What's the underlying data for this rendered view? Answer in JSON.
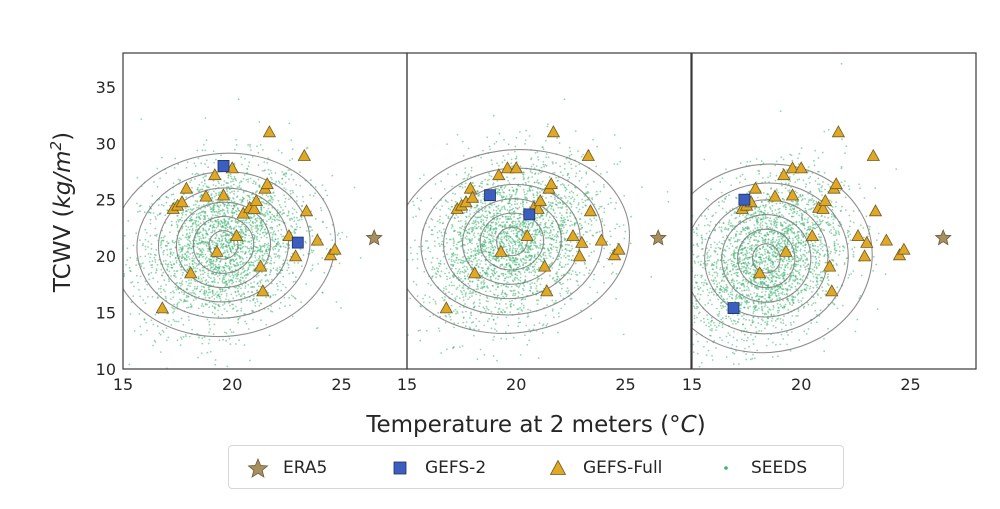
{
  "chart_data": {
    "type": "scatter",
    "ylabel_main": "TCWV (",
    "ylabel_unit": "kg/m",
    "ylabel_sup": "2",
    "ylabel_close": ")",
    "xlabel": "Temperature at 2 meters (",
    "xlabel_unit": "°C",
    "xlabel_close": ")",
    "xlim": [
      15,
      28
    ],
    "ylim": [
      10,
      38
    ],
    "xticks": [
      15,
      20,
      25
    ],
    "yticks": [
      10,
      15,
      20,
      25,
      30,
      35
    ],
    "grid": false,
    "legend_position": "bottom",
    "colors": {
      "era5": "#a88f5f",
      "gefs2": "#3b5fbf",
      "gefsfull": "#e0a823",
      "seeds": "#3cb371",
      "contour": "#7a7a7a"
    },
    "series_names": [
      "ERA5",
      "GEFS-2",
      "GEFS-Full",
      "SEEDS"
    ],
    "panels": [
      {
        "era5": [
          [
            26.5,
            21.6
          ]
        ],
        "gefs2": [
          [
            19.6,
            28.0
          ],
          [
            23.0,
            21.2
          ]
        ],
        "gefsfull": [
          [
            16.8,
            15.4
          ],
          [
            17.3,
            24.2
          ],
          [
            17.5,
            24.5
          ],
          [
            17.7,
            24.8
          ],
          [
            17.9,
            26.0
          ],
          [
            18.1,
            18.5
          ],
          [
            18.8,
            25.3
          ],
          [
            19.2,
            27.2
          ],
          [
            19.3,
            20.4
          ],
          [
            19.6,
            25.4
          ],
          [
            20.0,
            27.8
          ],
          [
            20.2,
            21.8
          ],
          [
            20.5,
            23.8
          ],
          [
            20.8,
            24.3
          ],
          [
            21.0,
            24.2
          ],
          [
            21.1,
            24.9
          ],
          [
            21.3,
            19.1
          ],
          [
            21.4,
            16.9
          ],
          [
            21.5,
            26.0
          ],
          [
            21.6,
            26.4
          ],
          [
            21.7,
            31.0
          ],
          [
            22.6,
            21.8
          ],
          [
            22.9,
            20.0
          ],
          [
            23.3,
            28.9
          ],
          [
            23.4,
            24.0
          ],
          [
            23.9,
            21.4
          ],
          [
            24.5,
            20.1
          ],
          [
            24.7,
            20.6
          ]
        ],
        "seeds_center": [
          19.6,
          21.0
        ],
        "seeds_spread": [
          1.9,
          3.6
        ],
        "seeds_corr": 0.2
      },
      {
        "era5": [
          [
            26.5,
            21.6
          ]
        ],
        "gefs2": [
          [
            18.8,
            25.4
          ],
          [
            20.6,
            23.7
          ]
        ],
        "gefsfull": [
          [
            16.8,
            15.4
          ],
          [
            17.3,
            24.2
          ],
          [
            17.5,
            24.5
          ],
          [
            17.7,
            24.8
          ],
          [
            17.9,
            26.0
          ],
          [
            18.1,
            18.5
          ],
          [
            19.2,
            27.2
          ],
          [
            19.3,
            20.4
          ],
          [
            19.6,
            27.8
          ],
          [
            20.0,
            27.8
          ],
          [
            20.5,
            21.8
          ],
          [
            20.8,
            24.3
          ],
          [
            21.0,
            24.2
          ],
          [
            21.1,
            24.9
          ],
          [
            21.3,
            19.1
          ],
          [
            21.4,
            16.9
          ],
          [
            21.5,
            26.0
          ],
          [
            21.6,
            26.4
          ],
          [
            21.7,
            31.0
          ],
          [
            22.6,
            21.8
          ],
          [
            22.9,
            20.0
          ],
          [
            23.0,
            21.2
          ],
          [
            23.3,
            28.9
          ],
          [
            23.4,
            24.0
          ],
          [
            23.9,
            21.4
          ],
          [
            24.5,
            20.1
          ],
          [
            24.7,
            20.6
          ],
          [
            18.0,
            25.2
          ]
        ],
        "seeds_center": [
          19.8,
          21.3
        ],
        "seeds_spread": [
          2.0,
          3.6
        ],
        "seeds_corr": 0.25
      },
      {
        "era5": [
          [
            26.5,
            21.6
          ]
        ],
        "gefs2": [
          [
            17.4,
            25.0
          ],
          [
            16.9,
            15.4
          ]
        ],
        "gefsfull": [
          [
            17.3,
            24.2
          ],
          [
            17.5,
            24.5
          ],
          [
            17.7,
            24.8
          ],
          [
            17.9,
            26.0
          ],
          [
            18.1,
            18.5
          ],
          [
            18.8,
            25.3
          ],
          [
            19.2,
            27.2
          ],
          [
            19.3,
            20.4
          ],
          [
            19.6,
            25.4
          ],
          [
            19.6,
            27.8
          ],
          [
            20.0,
            27.8
          ],
          [
            20.5,
            21.8
          ],
          [
            20.8,
            24.3
          ],
          [
            21.0,
            24.2
          ],
          [
            21.1,
            24.9
          ],
          [
            21.3,
            19.1
          ],
          [
            21.4,
            16.9
          ],
          [
            21.5,
            26.0
          ],
          [
            21.6,
            26.4
          ],
          [
            21.7,
            31.0
          ],
          [
            22.6,
            21.8
          ],
          [
            22.9,
            20.0
          ],
          [
            23.0,
            21.2
          ],
          [
            23.3,
            28.9
          ],
          [
            23.4,
            24.0
          ],
          [
            23.9,
            21.4
          ],
          [
            24.5,
            20.1
          ],
          [
            24.7,
            20.6
          ]
        ],
        "seeds_center": [
          18.4,
          19.8
        ],
        "seeds_spread": [
          1.8,
          3.7
        ],
        "seeds_corr": 0.3
      }
    ]
  }
}
